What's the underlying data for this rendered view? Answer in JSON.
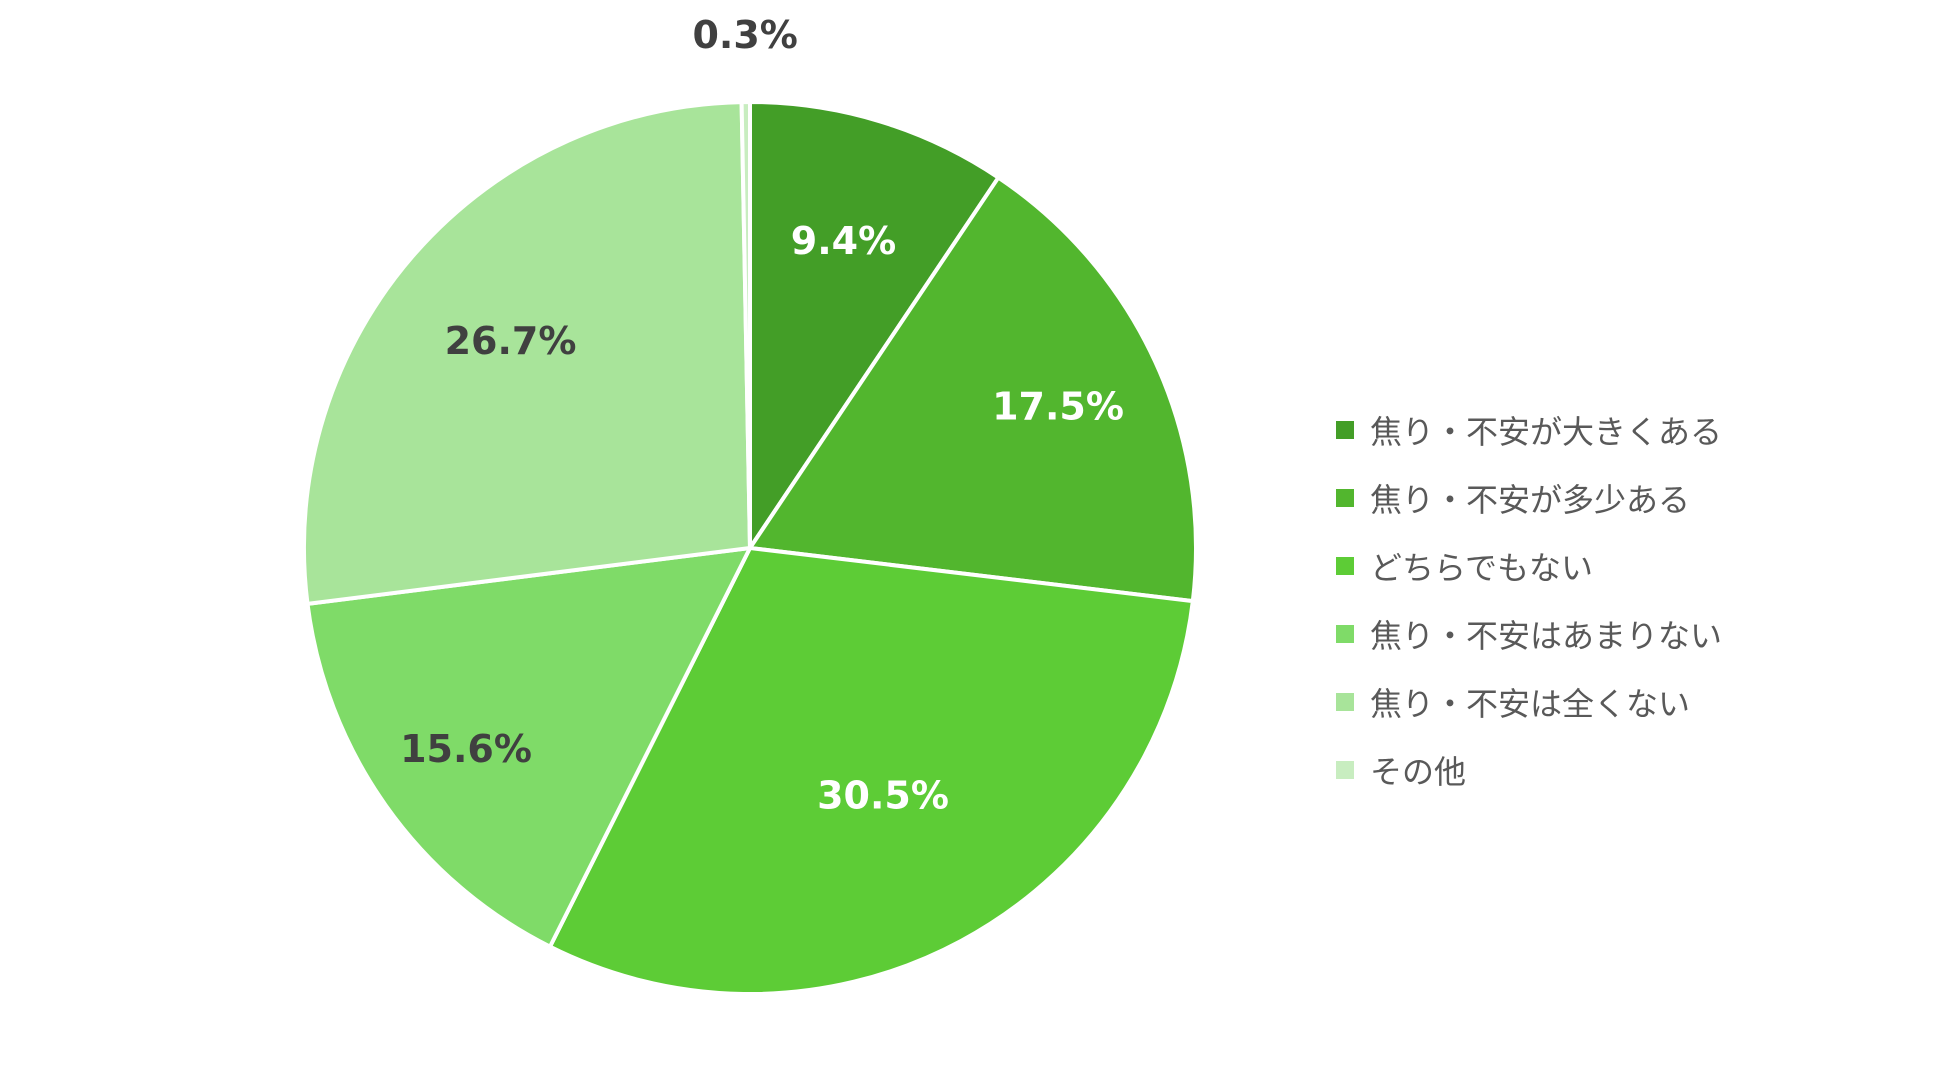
{
  "chart_data": {
    "type": "pie",
    "categories": [
      "焦り・不安が大きくある",
      "焦り・不安が多少ある",
      "どちらでもない",
      "焦り・不安はあまりない",
      "焦り・不安は全くない",
      "その他"
    ],
    "values": [
      9.4,
      17.5,
      30.5,
      15.6,
      26.7,
      0.3
    ],
    "data_labels": [
      "9.4%",
      "17.5%",
      "30.5%",
      "15.6%",
      "26.7%",
      "0.3%"
    ],
    "colors": [
      "#439E27",
      "#52B62E",
      "#5DCC36",
      "#7FDB68",
      "#A8E49A",
      "#C8EDC0"
    ],
    "label_colors": [
      "#ffffff",
      "#ffffff",
      "#ffffff",
      "#404040",
      "#404040",
      "#404040"
    ],
    "start_angle": "12 o'clock",
    "direction": "clockwise",
    "legend_position": "right"
  }
}
